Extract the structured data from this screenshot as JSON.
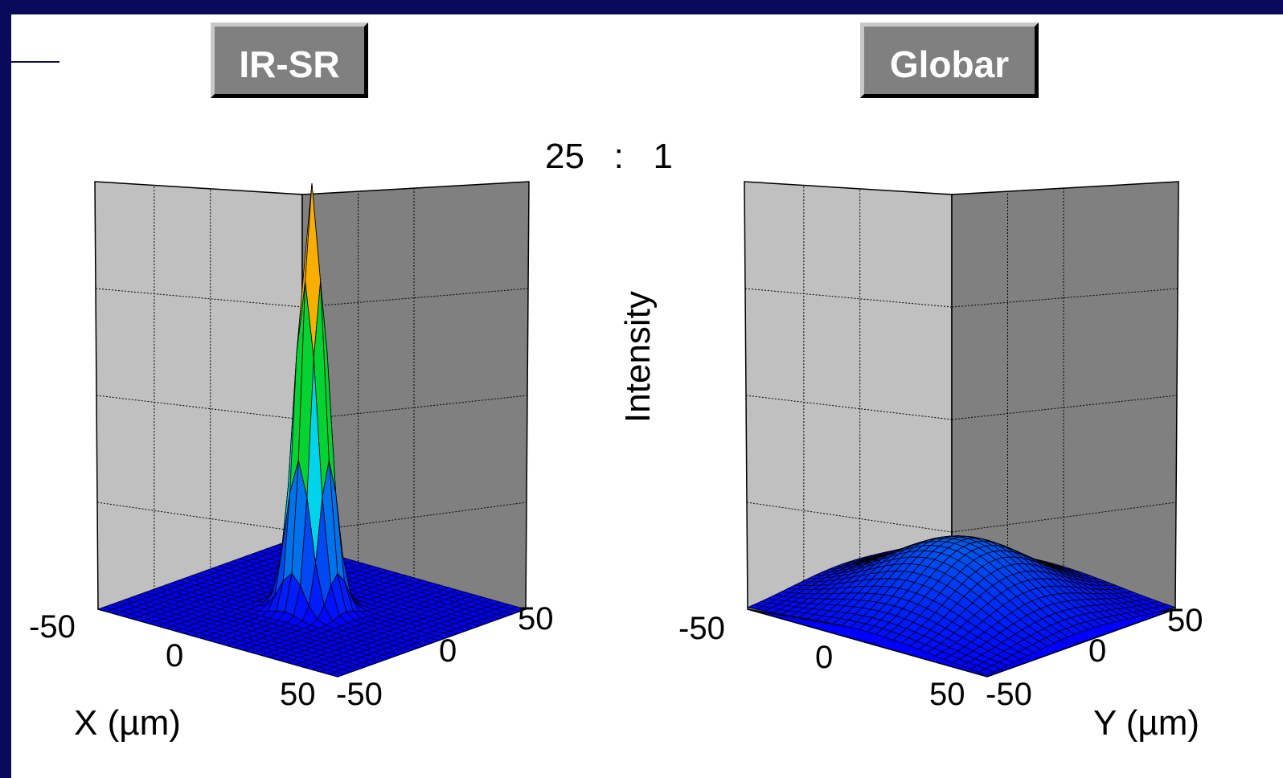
{
  "slide": {
    "left_label": "IR-SR",
    "right_label": "Globar",
    "ratio_text": "25   :   1",
    "intensity_label": "Intensity",
    "colors": {
      "background": "#0a0a5a",
      "box": "#808080",
      "wall_left": "#c0c0c0",
      "wall_right": "#808080",
      "floor": "#0000ff"
    }
  },
  "chart_data": [
    {
      "type": "surface",
      "name": "IR-SR",
      "zlabel": "Intensity",
      "xlabel": "X (µm)",
      "x_ticks": [
        "-50",
        "0",
        "50"
      ],
      "y_ticks": [
        "-50",
        "0",
        "50"
      ],
      "xlim": [
        -50,
        50
      ],
      "ylim": [
        -50,
        50
      ],
      "relative_peak": 25,
      "peak_width_um": 5,
      "colormap": "jet"
    },
    {
      "type": "surface",
      "name": "Globar",
      "zlabel": "Intensity",
      "xlabel": "Y (µm)",
      "x_ticks": [
        "-50",
        "0",
        "50"
      ],
      "y_ticks": [
        "-50",
        "0",
        "50"
      ],
      "xlim": [
        -50,
        50
      ],
      "ylim": [
        -50,
        50
      ],
      "relative_peak": 1,
      "peak_width_um": 22,
      "colormap": "jet"
    }
  ]
}
